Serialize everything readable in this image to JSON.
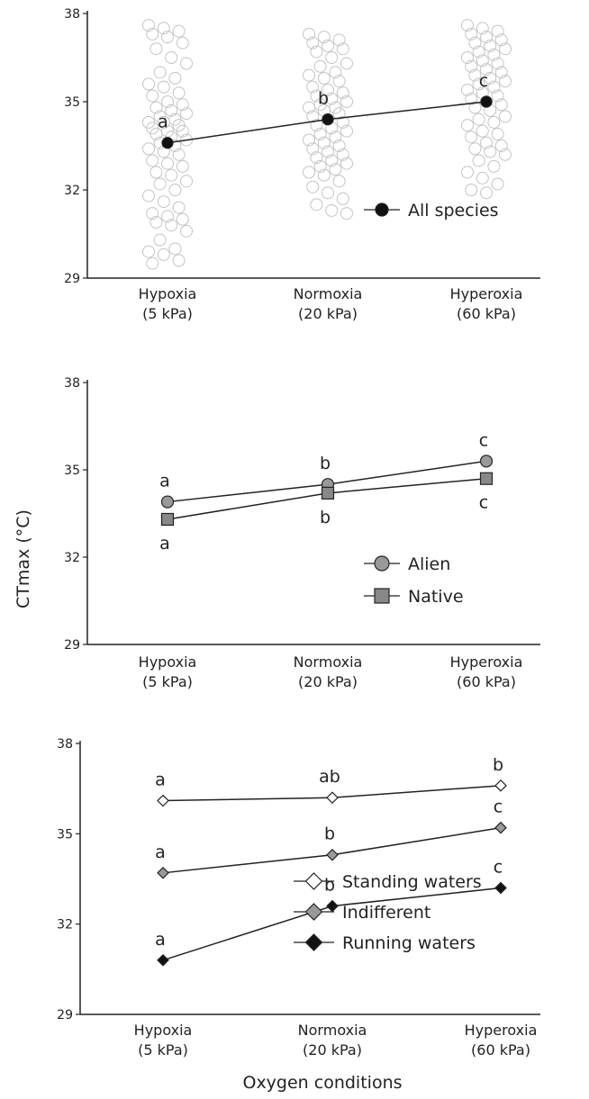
{
  "ylabel": "CTmax (°C)",
  "xlabel": "Oxygen conditions",
  "categories": [
    {
      "name": "Hypoxia",
      "sub": "(5 kPa)"
    },
    {
      "name": "Normoxia",
      "sub": "(20 kPa)"
    },
    {
      "name": "Hyperoxia",
      "sub": "(60 kPa)"
    }
  ],
  "chart_data": [
    {
      "type": "line",
      "categories": [
        "Hypoxia (5 kPa)",
        "Normoxia (20 kPa)",
        "Hyperoxia (60 kPa)"
      ],
      "ylim": [
        29,
        38
      ],
      "yticks": [
        29,
        32,
        35,
        38
      ],
      "grid": false,
      "legend_position": "right",
      "series": [
        {
          "name": "All species",
          "marker": "circle",
          "fill": "#111111",
          "values": [
            33.6,
            34.4,
            35.0
          ],
          "letters": [
            "a",
            "b",
            "c"
          ],
          "letter_pos": [
            "above",
            "above",
            "above"
          ]
        }
      ],
      "raw_points": [
        [
          37.6,
          37.5,
          37.4,
          37.3,
          37.2,
          37.0,
          36.8,
          36.5,
          36.3,
          36.0,
          35.8,
          35.6,
          35.5,
          35.3,
          35.2,
          35.0,
          34.9,
          34.8,
          34.7,
          34.6,
          34.5,
          34.4,
          34.3,
          34.3,
          34.2,
          34.1,
          34.0,
          34.0,
          33.9,
          33.8,
          33.7,
          33.6,
          33.5,
          33.4,
          33.3,
          33.2,
          33.0,
          32.9,
          32.8,
          32.6,
          32.5,
          32.3,
          32.2,
          32.0,
          31.8,
          31.6,
          31.4,
          31.2,
          31.1,
          31.0,
          30.9,
          30.8,
          30.6,
          30.3,
          30.0,
          29.9,
          29.8,
          29.6,
          29.5
        ],
        [
          37.3,
          37.2,
          37.1,
          37.0,
          36.9,
          36.8,
          36.7,
          36.5,
          36.3,
          36.2,
          36.0,
          35.9,
          35.8,
          35.7,
          35.5,
          35.4,
          35.3,
          35.2,
          35.1,
          35.0,
          34.9,
          34.8,
          34.8,
          34.7,
          34.6,
          34.5,
          34.4,
          34.3,
          34.2,
          34.1,
          34.0,
          33.9,
          33.8,
          33.7,
          33.6,
          33.5,
          33.4,
          33.3,
          33.2,
          33.1,
          33.0,
          32.9,
          32.8,
          32.7,
          32.6,
          32.5,
          32.3,
          32.1,
          31.9,
          31.7,
          31.5,
          31.3,
          31.2
        ],
        [
          37.6,
          37.5,
          37.4,
          37.3,
          37.2,
          37.1,
          37.0,
          36.9,
          36.8,
          36.7,
          36.6,
          36.5,
          36.4,
          36.3,
          36.2,
          36.1,
          36.0,
          35.9,
          35.8,
          35.7,
          35.6,
          35.5,
          35.4,
          35.3,
          35.2,
          35.1,
          35.0,
          34.9,
          34.8,
          34.7,
          34.5,
          34.4,
          34.3,
          34.2,
          34.0,
          33.9,
          33.8,
          33.6,
          33.5,
          33.4,
          33.3,
          33.2,
          33.0,
          32.8,
          32.6,
          32.4,
          32.2,
          32.0,
          31.9
        ]
      ]
    },
    {
      "type": "line",
      "categories": [
        "Hypoxia (5 kPa)",
        "Normoxia (20 kPa)",
        "Hyperoxia (60 kPa)"
      ],
      "ylim": [
        29,
        38
      ],
      "yticks": [
        29,
        32,
        35,
        38
      ],
      "grid": false,
      "legend_position": "right",
      "series": [
        {
          "name": "Alien",
          "marker": "circle",
          "fill": "#999999",
          "values": [
            33.9,
            34.5,
            35.3
          ],
          "letters": [
            "a",
            "b",
            "c"
          ],
          "letter_pos": [
            "above",
            "above",
            "above"
          ]
        },
        {
          "name": "Native",
          "marker": "square",
          "fill": "#888888",
          "values": [
            33.3,
            34.2,
            34.7
          ],
          "letters": [
            "a",
            "b",
            "c"
          ],
          "letter_pos": [
            "below",
            "below",
            "below"
          ]
        }
      ]
    },
    {
      "type": "line",
      "categories": [
        "Hypoxia (5 kPa)",
        "Normoxia (20 kPa)",
        "Hyperoxia (60 kPa)"
      ],
      "ylim": [
        29,
        38
      ],
      "yticks": [
        29,
        32,
        35,
        38
      ],
      "grid": false,
      "legend_position": "bottom-right",
      "series": [
        {
          "name": "Standing waters",
          "marker": "diamond",
          "fill": "#ffffff",
          "values": [
            36.1,
            36.2,
            36.6
          ],
          "letters": [
            "a",
            "ab",
            "b"
          ],
          "letter_pos": [
            "above",
            "above",
            "above"
          ]
        },
        {
          "name": "Indifferent",
          "marker": "diamond",
          "fill": "#999999",
          "values": [
            33.7,
            34.3,
            35.2
          ],
          "letters": [
            "a",
            "b",
            "c"
          ],
          "letter_pos": [
            "above",
            "above",
            "above"
          ]
        },
        {
          "name": "Running waters",
          "marker": "diamond",
          "fill": "#111111",
          "values": [
            30.8,
            32.6,
            33.2
          ],
          "letters": [
            "a",
            "b",
            "c"
          ],
          "letter_pos": [
            "above",
            "above",
            "above"
          ]
        }
      ]
    }
  ]
}
